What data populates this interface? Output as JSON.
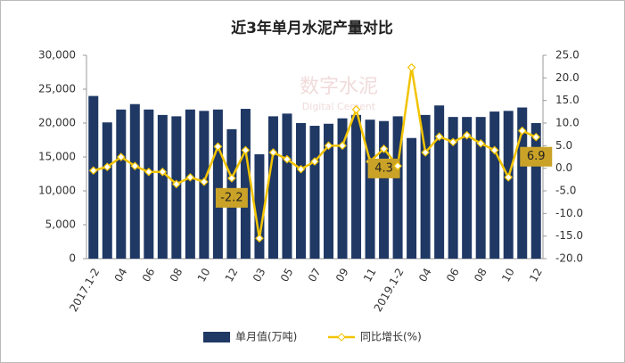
{
  "chart_data": {
    "type": "bar-line",
    "title": "近3年单月水泥产量对比",
    "watermark": {
      "cn": "数字水泥",
      "en": "Digital Cement"
    },
    "categories": [
      "2017.1-2",
      null,
      "04",
      null,
      "06",
      null,
      "08",
      null,
      "10",
      null,
      "12",
      null,
      "03",
      null,
      "05",
      null,
      "07",
      null,
      "09",
      null,
      "11",
      null,
      "2019.1-2",
      null,
      "04",
      null,
      "06",
      null,
      "08",
      null,
      "10",
      null,
      "12"
    ],
    "series": [
      {
        "name": "单月值(万吨)",
        "type": "bar",
        "color": "#1f3864",
        "values": [
          24000,
          20100,
          22000,
          22800,
          22000,
          21200,
          21000,
          22000,
          21800,
          22000,
          19100,
          22100,
          15400,
          21000,
          21400,
          20000,
          19600,
          19900,
          20700,
          21200,
          20500,
          20300,
          21000,
          17800,
          21200,
          22600,
          20900,
          20900,
          20900,
          21700,
          21800,
          22300,
          20000
        ]
      },
      {
        "name": "同比增长(%)",
        "type": "line",
        "axis": "y2",
        "color": "#f2c400",
        "values": [
          -0.5,
          0.3,
          2.5,
          0.5,
          -0.8,
          -0.8,
          -3.5,
          -2,
          -3,
          4.8,
          -2.2,
          4,
          -15.5,
          3.5,
          2,
          -0.2,
          1.5,
          5,
          5,
          13,
          1.5,
          4.3,
          0.5,
          22.3,
          3.5,
          7,
          5.8,
          7.3,
          5.5,
          4,
          -2,
          8.3,
          6.9
        ],
        "value_labels": [
          null,
          null,
          null,
          null,
          null,
          null,
          null,
          null,
          null,
          null,
          "-2.2",
          null,
          null,
          null,
          null,
          null,
          null,
          null,
          null,
          null,
          null,
          "4.3",
          null,
          null,
          null,
          null,
          null,
          null,
          null,
          null,
          null,
          null,
          "6.9"
        ]
      }
    ],
    "ylim": [
      0,
      30000
    ],
    "yticks": [
      0,
      {
        "value": 5000,
        "label": "5,000"
      },
      {
        "value": 10000,
        "label": "10,000"
      },
      {
        "value": 15000,
        "label": "15,000"
      },
      {
        "value": 20000,
        "label": "20,000"
      },
      {
        "value": 25000,
        "label": "25,000"
      },
      {
        "value": 30000,
        "label": "30,000"
      }
    ],
    "y2lim": [
      -20,
      25
    ],
    "y2ticks": [
      {
        "value": -20,
        "label": "-20.0"
      },
      {
        "value": -15,
        "label": "-15.0"
      },
      {
        "value": -10,
        "label": "-10.0"
      },
      {
        "value": -5,
        "label": "-5.0"
      },
      {
        "value": 0,
        "label": "0.0"
      },
      {
        "value": 5,
        "label": "5.0"
      },
      {
        "value": 10,
        "label": "10.0"
      },
      {
        "value": 15,
        "label": "15.0"
      },
      {
        "value": 20,
        "label": "20.0"
      },
      {
        "value": 25,
        "label": "25.0"
      }
    ],
    "legend": "bottom"
  }
}
